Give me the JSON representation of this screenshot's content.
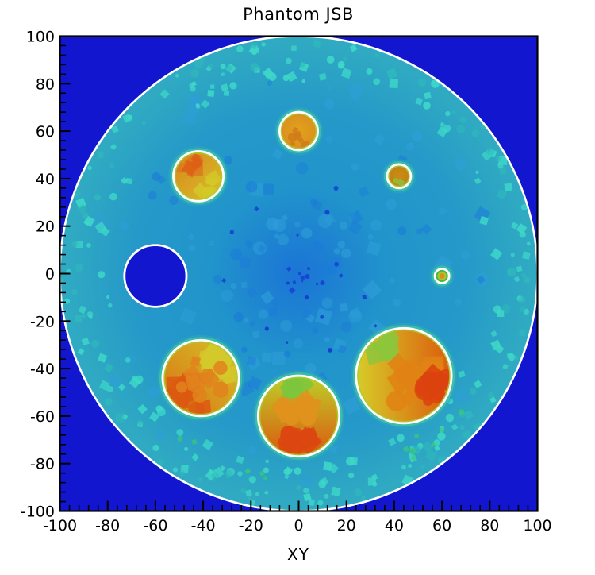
{
  "chart_data": {
    "type": "heatmap",
    "title": "Phantom JSB",
    "xlabel": "XY",
    "ylabel": "",
    "xlim": [
      -100,
      100
    ],
    "ylim": [
      -100,
      100
    ],
    "x_ticks": [
      -100,
      -80,
      -60,
      -40,
      -20,
      0,
      20,
      40,
      60,
      80,
      100
    ],
    "y_ticks": [
      -100,
      -80,
      -60,
      -40,
      -20,
      0,
      20,
      40,
      60,
      80,
      100
    ],
    "minor_tick_step": 4,
    "grid": false,
    "legend": "none",
    "colors": {
      "outside_background": "#1316cf",
      "frame": "#000000",
      "phantom_outline": "#ffffff",
      "body_center": "#1b74d6",
      "body_mid": "#2195cb",
      "body_rim": "#31abc2",
      "rim_speckle": "#3ed8c8",
      "rim_speckle2": "#2fbcba",
      "body_patch_light": "#2e9fd8",
      "body_patch_dark": "#1b7cd8",
      "center_dot": "#1540d2",
      "green_speckle": "#3cc87a",
      "hot_halo": "#3fc3a6",
      "hot_halo_outer": "#2fa9b8",
      "hot_inner_rim": "#a8cc32"
    },
    "phantom": {
      "center_x": 0,
      "center_y": 0,
      "radius": 100
    },
    "inserts": [
      {
        "name": "hot-top",
        "x": 0,
        "y": 60,
        "r": 8,
        "kind": "hot",
        "fill": [
          "#e2a31c",
          "#d98f1e"
        ],
        "gradient": "radial",
        "mottle": [
          {
            "color": "#d07b1a",
            "cx": 0.1,
            "cy": -0.35,
            "spread": 0.45,
            "count": 7
          }
        ]
      },
      {
        "name": "hot-upper-left",
        "x": -42,
        "y": 41,
        "r": 10.5,
        "kind": "hot",
        "fill": [
          "#d6c42a",
          "#d9821c"
        ],
        "gradient": "diag-tl",
        "mottle": [
          {
            "color": "#db7a1e",
            "cx": -0.35,
            "cy": 0.45,
            "spread": 0.4,
            "count": 9
          },
          {
            "color": "#d4c828",
            "cx": 0.45,
            "cy": -0.4,
            "spread": 0.4,
            "count": 8
          },
          {
            "color": "#dd5f16",
            "cx": -0.2,
            "cy": 0.6,
            "spread": 0.3,
            "count": 4
          }
        ]
      },
      {
        "name": "hot-upper-right",
        "x": 42,
        "y": 41,
        "r": 5,
        "kind": "hot",
        "fill": [
          "#cc8c16",
          "#bf8010"
        ],
        "gradient": "radial",
        "mottle": [
          {
            "color": "#8fbf3a",
            "cx": 0,
            "cy": -0.6,
            "spread": 0.35,
            "count": 3
          }
        ]
      },
      {
        "name": "hot-right-tiny",
        "x": 60,
        "y": -1,
        "r": 3,
        "kind": "hot-tiny",
        "fill": [
          "#46b84e",
          "#a8c62a",
          "#dd8d1a"
        ],
        "gradient": "rings",
        "mottle": []
      },
      {
        "name": "cold-left",
        "x": -60,
        "y": -1,
        "r": 13,
        "kind": "cold",
        "fill": [
          "#1316cf",
          "#1316cf"
        ],
        "gradient": "flat",
        "mottle": []
      },
      {
        "name": "hot-lower-left",
        "x": -41,
        "y": -44,
        "r": 16,
        "kind": "hot",
        "fill": [
          "#d2c52a",
          "#dc6f12"
        ],
        "gradient": "diag-bl",
        "mottle": [
          {
            "color": "#dc5912",
            "cx": -0.35,
            "cy": -0.4,
            "spread": 0.45,
            "count": 16
          },
          {
            "color": "#d3c92a",
            "cx": 0.5,
            "cy": 0.45,
            "spread": 0.4,
            "count": 12
          },
          {
            "color": "#e0831c",
            "cx": 0,
            "cy": 0,
            "spread": 0.6,
            "count": 10
          }
        ]
      },
      {
        "name": "hot-bottom",
        "x": 0,
        "y": -60,
        "r": 17,
        "kind": "hot",
        "fill": [
          "#bdd028",
          "#dc5710"
        ],
        "gradient": "vertical",
        "mottle": [
          {
            "color": "#7cc63c",
            "cx": 0,
            "cy": 0.8,
            "spread": 0.35,
            "count": 8
          },
          {
            "color": "#e0921c",
            "cx": 0,
            "cy": -0.1,
            "spread": 0.5,
            "count": 16
          },
          {
            "color": "#dc4710",
            "cx": 0,
            "cy": -0.75,
            "spread": 0.4,
            "count": 12
          }
        ]
      },
      {
        "name": "hot-lower-right",
        "x": 44,
        "y": -43,
        "r": 20,
        "kind": "hot",
        "fill": [
          "#d6cd28",
          "#dc5a0e"
        ],
        "gradient": "horizontal",
        "mottle": [
          {
            "color": "#8cc63c",
            "cx": -0.55,
            "cy": 0.6,
            "spread": 0.3,
            "count": 6
          },
          {
            "color": "#e08214",
            "cx": 0.35,
            "cy": -0.1,
            "spread": 0.5,
            "count": 18
          },
          {
            "color": "#dc420e",
            "cx": 0.75,
            "cy": -0.2,
            "spread": 0.35,
            "count": 12
          }
        ]
      }
    ]
  }
}
